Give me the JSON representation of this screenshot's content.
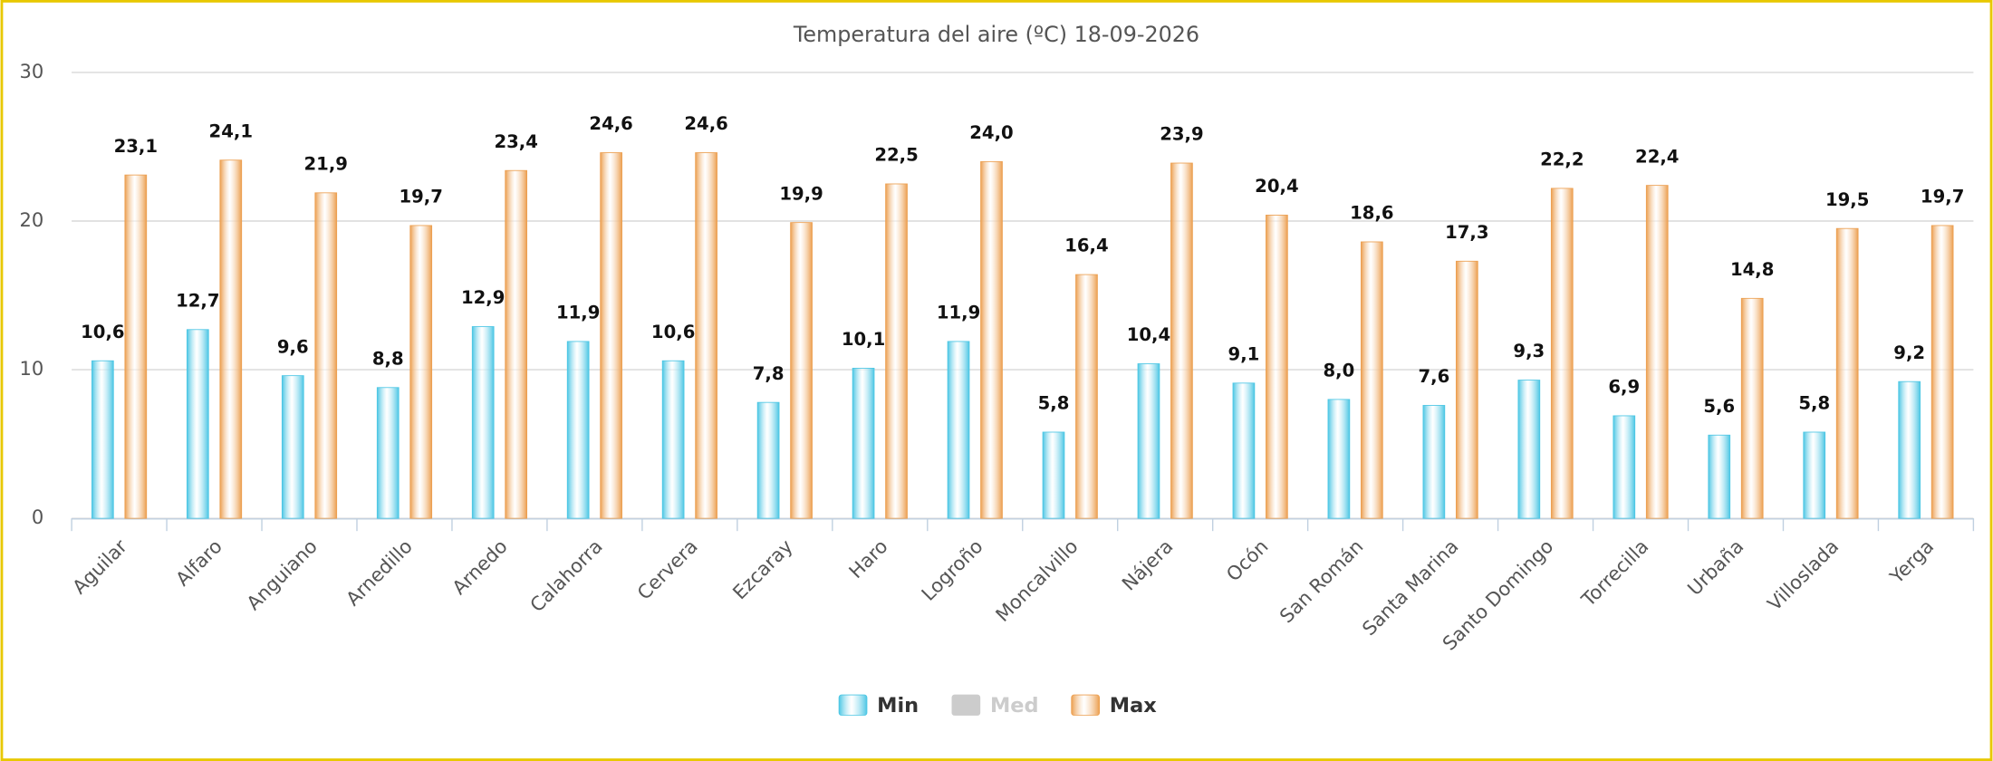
{
  "chart_data": {
    "type": "bar",
    "title": "Temperatura del aire (ºC) 18-09-2026",
    "categories": [
      "Aguilar",
      "Alfaro",
      "Anguiano",
      "Arnedillo",
      "Arnedo",
      "Calahorra",
      "Cervera",
      "Ezcaray",
      "Haro",
      "Logroño",
      "Moncalvillo",
      "Nájera",
      "Ocón",
      "San Román",
      "Santa Marina",
      "Santo Domingo",
      "Torrecilla",
      "Urbaña",
      "Villoslada",
      "Yerga"
    ],
    "series": [
      {
        "name": "Min",
        "color": "#4cc6e4",
        "visible": true,
        "values": [
          10.6,
          12.7,
          9.6,
          8.8,
          12.9,
          11.9,
          10.6,
          7.8,
          10.1,
          11.9,
          5.8,
          10.4,
          9.1,
          8.0,
          7.6,
          9.3,
          6.9,
          5.6,
          5.8,
          9.2
        ],
        "value_labels": [
          "10,6",
          "12,7",
          "9,6",
          "8,8",
          "12,9",
          "11,9",
          "10,6",
          "7,8",
          "10,1",
          "11,9",
          "5,8",
          "10,4",
          "9,1",
          "8,0",
          "7,6",
          "9,3",
          "6,9",
          "5,6",
          "5,8",
          "9,2"
        ]
      },
      {
        "name": "Med",
        "color": "#cccccc",
        "visible": false,
        "values": [
          null,
          null,
          null,
          null,
          null,
          null,
          null,
          null,
          null,
          null,
          null,
          null,
          null,
          null,
          null,
          null,
          null,
          null,
          null,
          null
        ]
      },
      {
        "name": "Max",
        "color": "#ec9f50",
        "visible": true,
        "values": [
          23.1,
          24.1,
          21.9,
          19.7,
          23.4,
          24.6,
          24.6,
          19.9,
          22.5,
          24.0,
          16.4,
          23.9,
          20.4,
          18.6,
          17.3,
          22.2,
          22.4,
          14.8,
          19.5,
          19.7
        ],
        "value_labels": [
          "23,1",
          "24,1",
          "21,9",
          "19,7",
          "23,4",
          "24,6",
          "24,6",
          "19,9",
          "22,5",
          "24,0",
          "16,4",
          "23,9",
          "20,4",
          "18,6",
          "17,3",
          "22,2",
          "22,4",
          "14,8",
          "19,5",
          "19,7"
        ]
      }
    ],
    "ylim": [
      0,
      30
    ],
    "yticks": [
      0,
      10,
      20,
      30
    ],
    "grid": true,
    "legend": "bottom"
  }
}
